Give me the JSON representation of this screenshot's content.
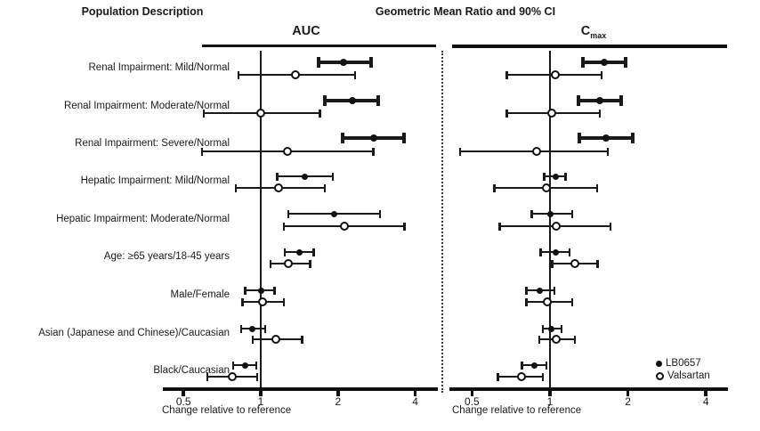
{
  "header": {
    "left_title": "Population Description",
    "right_title": "Geometric Mean Ratio and 90% CI"
  },
  "chart_data": {
    "type": "forest",
    "x_scale": "log",
    "xlabel": "Change relative to reference",
    "x_ticks": [
      0.5,
      1,
      2,
      4
    ],
    "xlim": [
      0.42,
      4.6
    ],
    "reference_value": 1,
    "legend": [
      {
        "label": "LB0657",
        "marker": "filled-circle"
      },
      {
        "label": "Valsartan",
        "marker": "open-circle"
      }
    ],
    "categories": [
      "Renal Impairment: Mild/Normal",
      "Renal Impairment: Moderate/Normal",
      "Renal Impairment: Severe/Normal",
      "Hepatic Impairment: Mild/Normal",
      "Hepatic Impairment: Moderate/Normal",
      "Age: ≥65 years/18-45 years",
      "Male/Female",
      "Asian (Japanese and Chinese)/Caucasian",
      "Black/Caucasian"
    ],
    "panels": [
      {
        "title": "AUC",
        "title_main": "AUC",
        "title_sub": "",
        "rows": [
          {
            "category": "Renal Impairment: Mild/Normal",
            "series": [
              {
                "name": "LB0657",
                "mean": 2.1,
                "lo": 1.68,
                "hi": 2.7,
                "bold": true
              },
              {
                "name": "Valsartan",
                "mean": 1.37,
                "lo": 0.82,
                "hi": 2.33,
                "bold": false
              }
            ]
          },
          {
            "category": "Renal Impairment: Moderate/Normal",
            "series": [
              {
                "name": "LB0657",
                "mean": 2.27,
                "lo": 1.78,
                "hi": 2.87,
                "bold": true
              },
              {
                "name": "Valsartan",
                "mean": 1.0,
                "lo": 0.6,
                "hi": 1.7,
                "bold": false
              }
            ]
          },
          {
            "category": "Renal Impairment: Severe/Normal",
            "series": [
              {
                "name": "LB0657",
                "mean": 2.75,
                "lo": 2.08,
                "hi": 3.63,
                "bold": true
              },
              {
                "name": "Valsartan",
                "mean": 1.27,
                "lo": 0.59,
                "hi": 2.75,
                "bold": false
              }
            ]
          },
          {
            "category": "Hepatic Impairment: Mild/Normal",
            "series": [
              {
                "name": "LB0657",
                "mean": 1.49,
                "lo": 1.16,
                "hi": 1.91,
                "bold": false
              },
              {
                "name": "Valsartan",
                "mean": 1.18,
                "lo": 0.8,
                "hi": 1.78,
                "bold": false
              }
            ]
          },
          {
            "category": "Hepatic Impairment: Moderate/Normal",
            "series": [
              {
                "name": "LB0657",
                "mean": 1.93,
                "lo": 1.28,
                "hi": 2.91,
                "bold": false
              },
              {
                "name": "Valsartan",
                "mean": 2.12,
                "lo": 1.23,
                "hi": 3.63,
                "bold": false
              }
            ]
          },
          {
            "category": "Age: ≥65 years/18-45 years",
            "series": [
              {
                "name": "LB0657",
                "mean": 1.42,
                "lo": 1.24,
                "hi": 1.61,
                "bold": false
              },
              {
                "name": "Valsartan",
                "mean": 1.29,
                "lo": 1.09,
                "hi": 1.56,
                "bold": false
              }
            ]
          },
          {
            "category": "Male/Female",
            "series": [
              {
                "name": "LB0657",
                "mean": 1.0,
                "lo": 0.87,
                "hi": 1.13,
                "bold": false
              },
              {
                "name": "Valsartan",
                "mean": 1.02,
                "lo": 0.85,
                "hi": 1.23,
                "bold": false
              }
            ]
          },
          {
            "category": "Asian (Japanese and Chinese)/Caucasian",
            "series": [
              {
                "name": "LB0657",
                "mean": 0.93,
                "lo": 0.84,
                "hi": 1.04,
                "bold": false
              },
              {
                "name": "Valsartan",
                "mean": 1.15,
                "lo": 0.93,
                "hi": 1.45,
                "bold": false
              }
            ]
          },
          {
            "category": "Black/Caucasian",
            "series": [
              {
                "name": "LB0657",
                "mean": 0.87,
                "lo": 0.78,
                "hi": 0.96,
                "bold": false
              },
              {
                "name": "Valsartan",
                "mean": 0.78,
                "lo": 0.62,
                "hi": 0.97,
                "bold": false
              }
            ]
          }
        ]
      },
      {
        "title": "Cmax",
        "title_main": "C",
        "title_sub": "max",
        "rows": [
          {
            "category": "Renal Impairment: Mild/Normal",
            "series": [
              {
                "name": "LB0657",
                "mean": 1.62,
                "lo": 1.34,
                "hi": 1.96,
                "bold": true
              },
              {
                "name": "Valsartan",
                "mean": 1.05,
                "lo": 0.68,
                "hi": 1.58,
                "bold": false
              }
            ]
          },
          {
            "category": "Renal Impairment: Moderate/Normal",
            "series": [
              {
                "name": "LB0657",
                "mean": 1.56,
                "lo": 1.29,
                "hi": 1.88,
                "bold": true
              },
              {
                "name": "Valsartan",
                "mean": 1.02,
                "lo": 0.68,
                "hi": 1.56,
                "bold": false
              }
            ]
          },
          {
            "category": "Renal Impairment: Severe/Normal",
            "series": [
              {
                "name": "LB0657",
                "mean": 1.65,
                "lo": 1.3,
                "hi": 2.09,
                "bold": true
              },
              {
                "name": "Valsartan",
                "mean": 0.89,
                "lo": 0.45,
                "hi": 1.67,
                "bold": false
              }
            ]
          },
          {
            "category": "Hepatic Impairment: Mild/Normal",
            "series": [
              {
                "name": "LB0657",
                "mean": 1.05,
                "lo": 0.95,
                "hi": 1.15,
                "bold": false
              },
              {
                "name": "Valsartan",
                "mean": 0.97,
                "lo": 0.61,
                "hi": 1.52,
                "bold": false
              }
            ]
          },
          {
            "category": "Hepatic Impairment: Moderate/Normal",
            "series": [
              {
                "name": "LB0657",
                "mean": 1.0,
                "lo": 0.85,
                "hi": 1.22,
                "bold": false
              },
              {
                "name": "Valsartan",
                "mean": 1.06,
                "lo": 0.64,
                "hi": 1.71,
                "bold": false
              }
            ]
          },
          {
            "category": "Age: ≥65 years/18-45 years",
            "series": [
              {
                "name": "LB0657",
                "mean": 1.05,
                "lo": 0.92,
                "hi": 1.19,
                "bold": false
              },
              {
                "name": "Valsartan",
                "mean": 1.25,
                "lo": 1.02,
                "hi": 1.53,
                "bold": false
              }
            ]
          },
          {
            "category": "Male/Female",
            "series": [
              {
                "name": "LB0657",
                "mean": 0.91,
                "lo": 0.81,
                "hi": 1.04,
                "bold": false
              },
              {
                "name": "Valsartan",
                "mean": 0.98,
                "lo": 0.81,
                "hi": 1.22,
                "bold": false
              }
            ]
          },
          {
            "category": "Asian (Japanese and Chinese)/Caucasian",
            "series": [
              {
                "name": "LB0657",
                "mean": 1.01,
                "lo": 0.94,
                "hi": 1.11,
                "bold": false
              },
              {
                "name": "Valsartan",
                "mean": 1.06,
                "lo": 0.91,
                "hi": 1.25,
                "bold": false
              }
            ]
          },
          {
            "category": "Black/Caucasian",
            "series": [
              {
                "name": "LB0657",
                "mean": 0.87,
                "lo": 0.78,
                "hi": 0.97,
                "bold": false
              },
              {
                "name": "Valsartan",
                "mean": 0.78,
                "lo": 0.63,
                "hi": 0.94,
                "bold": false
              }
            ]
          }
        ]
      }
    ]
  }
}
